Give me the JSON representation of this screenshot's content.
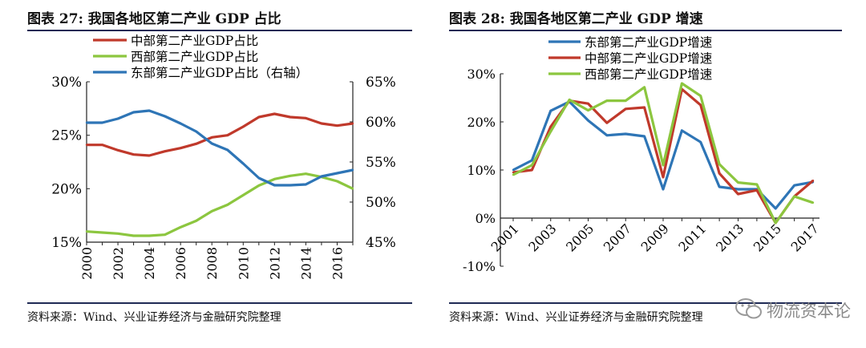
{
  "left": {
    "title": "图表 27: 我国各地区第二产业 GDP 占比",
    "source": "资料来源：Wind、兴业证券经济与金融研究院整理"
  },
  "right": {
    "title": "图表 28: 我国各地区第二产业 GDP 增速",
    "source": "资料来源：Wind、兴业证券经济与金融研究院整理"
  },
  "watermark": {
    "text": "物流资本论",
    "icon": "wechat-icon"
  },
  "colors": {
    "red": "#c0392b",
    "blue": "#2e75b6",
    "green": "#8cc63f",
    "rule": "#1f2a55"
  },
  "chart_data": [
    {
      "type": "line",
      "title": "我国各地区第二产业 GDP 占比",
      "x": [
        2000,
        2001,
        2002,
        2003,
        2004,
        2005,
        2006,
        2007,
        2008,
        2009,
        2010,
        2011,
        2012,
        2013,
        2014,
        2015,
        2016,
        2017
      ],
      "x_tick_labels": [
        "2000",
        "2002",
        "2004",
        "2006",
        "2008",
        "2010",
        "2012",
        "2014",
        "2016"
      ],
      "y_left": {
        "ylim": [
          15,
          30
        ],
        "ticks": [
          "15%",
          "20%",
          "25%",
          "30%"
        ]
      },
      "y_right": {
        "ylim": [
          45,
          65
        ],
        "ticks": [
          "45%",
          "50%",
          "55%",
          "60%",
          "65%"
        ]
      },
      "legend_position": "top-left",
      "series": [
        {
          "name": "中部第二产业GDP占比",
          "axis": "left",
          "color": "#c0392b",
          "values": [
            24.1,
            24.1,
            23.6,
            23.2,
            23.1,
            23.5,
            23.8,
            24.2,
            24.8,
            25.0,
            25.8,
            26.7,
            27.0,
            26.7,
            26.6,
            26.1,
            25.9,
            26.1
          ]
        },
        {
          "name": "西部第二产业GDP占比",
          "axis": "left",
          "color": "#8cc63f",
          "values": [
            16.0,
            15.9,
            15.8,
            15.6,
            15.6,
            15.7,
            16.4,
            17.0,
            17.9,
            18.5,
            19.4,
            20.3,
            20.9,
            21.2,
            21.4,
            21.1,
            20.7,
            20.0
          ]
        },
        {
          "name": "东部第二产业GDP占比（右轴）",
          "axis": "right",
          "color": "#2e75b6",
          "values": [
            59.9,
            59.9,
            60.4,
            61.2,
            61.4,
            60.7,
            59.8,
            58.8,
            57.3,
            56.5,
            54.8,
            53.0,
            52.1,
            52.1,
            52.2,
            53.2,
            53.6,
            54.0
          ]
        }
      ]
    },
    {
      "type": "line",
      "title": "我国各地区第二产业 GDP 增速",
      "x": [
        2001,
        2002,
        2003,
        2004,
        2005,
        2006,
        2007,
        2008,
        2009,
        2010,
        2011,
        2012,
        2013,
        2014,
        2015,
        2016,
        2017
      ],
      "x_tick_labels": [
        "2001",
        "2003",
        "2005",
        "2007",
        "2009",
        "2011",
        "2013",
        "2015",
        "2017"
      ],
      "ylim": [
        -10,
        30
      ],
      "y_ticks": [
        "-10%",
        "0%",
        "10%",
        "20%",
        "30%"
      ],
      "legend_position": "top-left",
      "series": [
        {
          "name": "东部第二产业GDP增速",
          "color": "#2e75b6",
          "values": [
            10.0,
            12.0,
            22.3,
            24.2,
            20.3,
            17.2,
            17.5,
            17.0,
            6.0,
            18.2,
            15.8,
            6.5,
            6.0,
            6.0,
            2.0,
            6.8,
            7.5
          ]
        },
        {
          "name": "中部第二产业GDP增速",
          "color": "#c0392b",
          "values": [
            9.5,
            10.0,
            19.0,
            24.4,
            23.8,
            19.8,
            22.7,
            23.0,
            8.5,
            26.8,
            23.5,
            9.3,
            5.0,
            5.8,
            -1.0,
            4.5,
            7.8
          ]
        },
        {
          "name": "西部第二产业GDP增速",
          "color": "#8cc63f",
          "values": [
            9.0,
            11.0,
            18.0,
            24.6,
            22.4,
            24.4,
            24.4,
            27.2,
            11.0,
            28.0,
            25.4,
            11.2,
            7.4,
            7.0,
            -1.0,
            4.5,
            3.2
          ]
        }
      ]
    }
  ]
}
